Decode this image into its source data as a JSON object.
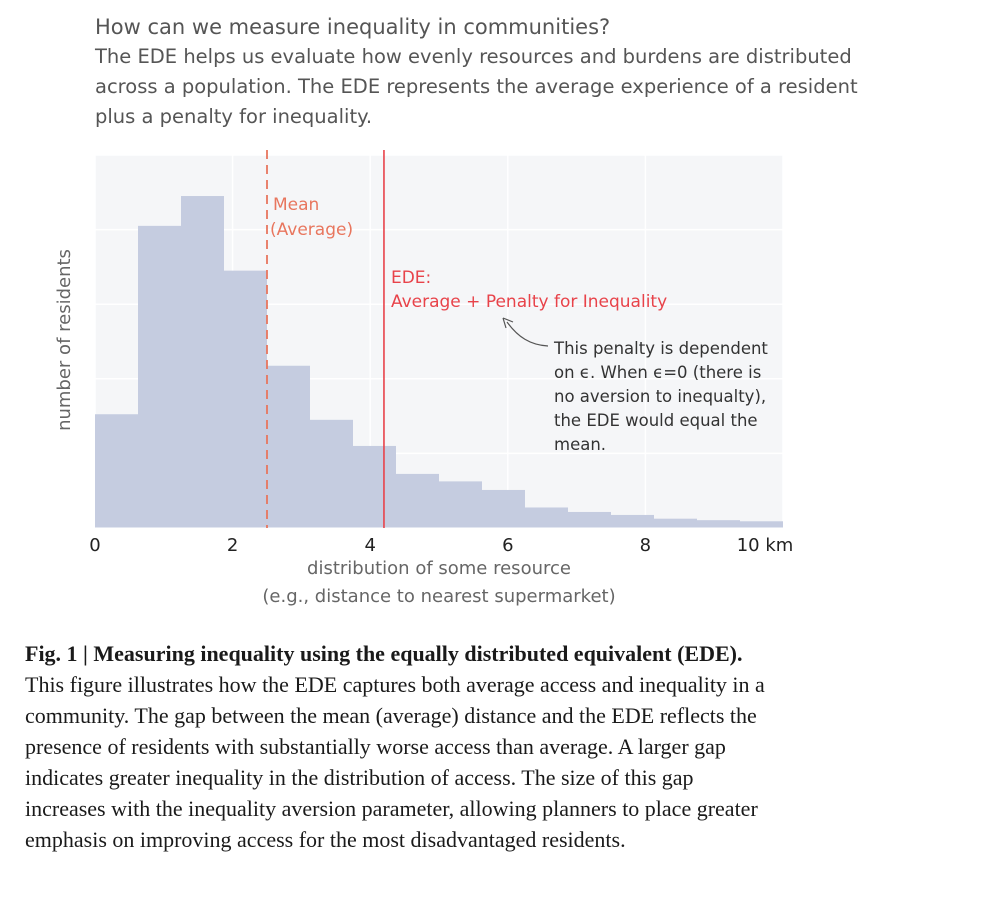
{
  "header": {
    "title": "How can we measure inequality in communities?",
    "subtitle_lines": [
      "The EDE helps us evaluate how evenly resources and burdens are distributed",
      "across a population. The EDE represents the average experience of a resident",
      "plus a penalty for inequality."
    ]
  },
  "chart_data": {
    "type": "bar",
    "subtype": "histogram",
    "xlabel_lines": [
      "distribution of some resource",
      "(e.g., distance to nearest supermarket)"
    ],
    "ylabel": "number of residents",
    "xlim": [
      0,
      10
    ],
    "ylim": [
      0,
      100
    ],
    "xticks": [
      0,
      2,
      4,
      6,
      8,
      10
    ],
    "xtick_labels": [
      "0",
      "2",
      "4",
      "6",
      "8",
      "10 km"
    ],
    "bin_width": 0.625,
    "bins": [
      0,
      0.625,
      1.25,
      1.875,
      2.5,
      3.125,
      3.75,
      4.375,
      5.0,
      5.625,
      6.25,
      6.875,
      7.5,
      8.125,
      8.75,
      9.375
    ],
    "values": [
      30.5,
      81,
      89,
      69,
      43.5,
      29,
      22,
      14.5,
      12.5,
      10.2,
      5.5,
      4.3,
      3.5,
      2.5,
      2.1,
      1.8
    ],
    "grid": "horizontal",
    "bar_color": "#c5cce0",
    "mean_line": {
      "x": 2.5,
      "label_lines": [
        "Mean",
        "(Average)"
      ],
      "style": "dashed",
      "color": "#e8765e"
    },
    "ede_line": {
      "x": 4.2,
      "label_lines": [
        "EDE:",
        "Average + Penalty for Inequality"
      ],
      "style": "solid",
      "color": "#e8434a"
    },
    "annotation": {
      "lines": [
        "This penalty is dependent",
        "on ϵ. When ϵ=0 (there is",
        "no aversion to inequalty),",
        "the EDE would equal the",
        "mean."
      ]
    }
  },
  "caption": {
    "title": "Fig. 1 | Measuring inequality using the equally distributed equivalent (EDE).",
    "lines": [
      "This figure illustrates how the EDE captures both average access and inequality in a",
      "community. The gap between the mean (average) distance and the EDE reflects the",
      "presence of residents with substantially worse access than average. A larger gap",
      "indicates greater inequality in the distribution of access. The size of this gap",
      "increases with the inequality aversion parameter, allowing planners to place greater",
      "emphasis on improving access for the most disadvantaged residents."
    ]
  }
}
